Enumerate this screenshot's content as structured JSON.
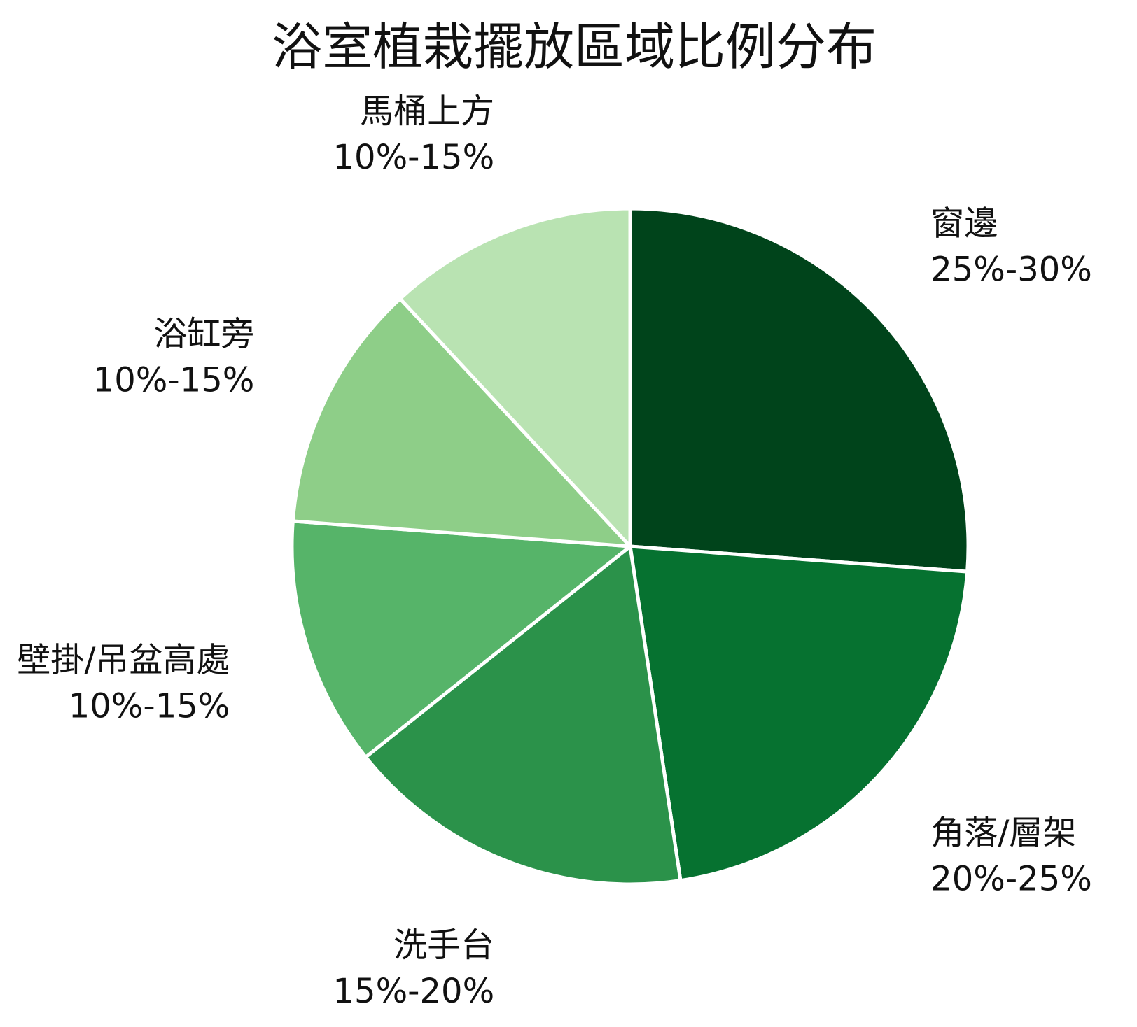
{
  "chart_data": {
    "type": "pie",
    "title": "浴室植栽擺放區域比例分布",
    "slices": [
      {
        "label": "窗邊",
        "range_text": "25%-30%",
        "value": 27.5,
        "color": "#00441b"
      },
      {
        "label": "角落/層架",
        "range_text": "20%-25%",
        "value": 22.5,
        "color": "#067230"
      },
      {
        "label": "洗手台",
        "range_text": "15%-20%",
        "value": 17.5,
        "color": "#2b924a"
      },
      {
        "label": "壁掛/吊盆高處",
        "range_text": "10%-15%",
        "value": 12.5,
        "color": "#56b469"
      },
      {
        "label": "浴缸旁",
        "range_text": "10%-15%",
        "value": 12.5,
        "color": "#8ece88"
      },
      {
        "label": "馬桶上方",
        "range_text": "10%-15%",
        "value": 12.5,
        "color": "#b9e3b2"
      }
    ],
    "start_angle": "12 o'clock",
    "direction": "clockwise",
    "slice_border_color": "#ffffff",
    "legend": "none"
  }
}
